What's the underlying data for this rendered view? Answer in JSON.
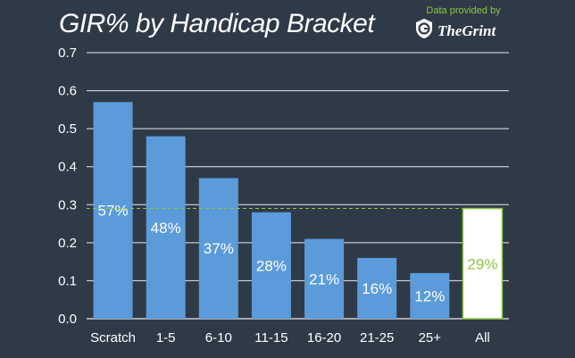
{
  "brand": {
    "caption": "Data provided by",
    "name": "TheGrint",
    "icon": "grint-shield-icon",
    "accent": "#8cc63f"
  },
  "colors": {
    "background": "#2f3a48",
    "bar": "#5b9bd9",
    "highlight_bar_fill": "#ffffff",
    "highlight_bar_border": "#8cc63f",
    "highlight_text": "#8cc63f",
    "grid": "#ffffff",
    "reference_line": "#8cc63f"
  },
  "chart_data": {
    "type": "bar",
    "title": "GIR% by Handicap Bracket",
    "xlabel": "",
    "ylabel": "",
    "categories": [
      "Scratch",
      "1-5",
      "6-10",
      "11-15",
      "16-20",
      "21-25",
      "25+",
      "All"
    ],
    "values": [
      0.57,
      0.48,
      0.37,
      0.28,
      0.21,
      0.16,
      0.12,
      0.29
    ],
    "data_labels": [
      "57%",
      "48%",
      "37%",
      "28%",
      "21%",
      "16%",
      "12%",
      "29%"
    ],
    "highlight_category": "All",
    "reference_line": 0.29,
    "ylim": [
      0,
      0.7
    ],
    "yticks": [
      "0.0",
      "0.1",
      "0.2",
      "0.3",
      "0.4",
      "0.5",
      "0.6",
      "0.7"
    ],
    "grid": true,
    "legend": "none"
  }
}
